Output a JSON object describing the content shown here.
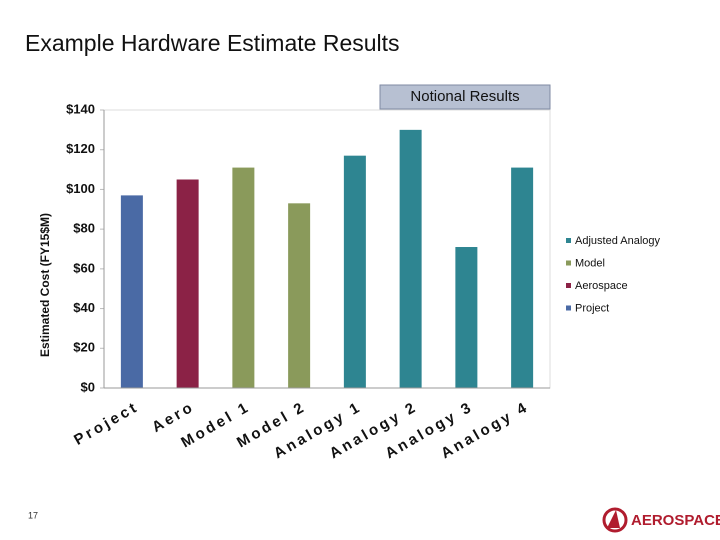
{
  "title": "Example Hardware Estimate Results",
  "badge": "Notional Results",
  "page_number": "17",
  "logo_text": "AEROSPACE",
  "chart_data": {
    "type": "bar",
    "ylabel": "Estimated Cost (FY15$M)",
    "categories": [
      "Project",
      "Aero",
      "Model 1",
      "Model 2",
      "Analogy 1",
      "Analogy 2",
      "Analogy 3",
      "Analogy 4"
    ],
    "series": [
      {
        "name": "Adjusted Analogy",
        "color": "#2e8591",
        "values": [
          null,
          null,
          null,
          null,
          117,
          130,
          71,
          111
        ]
      },
      {
        "name": "Model",
        "color": "#8a9a5b",
        "values": [
          null,
          null,
          111,
          93,
          null,
          null,
          null,
          null
        ]
      },
      {
        "name": "Aerospace",
        "color": "#8b2246",
        "values": [
          null,
          105,
          null,
          null,
          null,
          null,
          null,
          null
        ]
      },
      {
        "name": "Project",
        "color": "#4a6aa5",
        "values": [
          97,
          null,
          null,
          null,
          null,
          null,
          null,
          null
        ]
      }
    ],
    "ylim": [
      0,
      140
    ],
    "yticks": [
      {
        "value": 0,
        "label": "$0"
      },
      {
        "value": 20,
        "label": "$20"
      },
      {
        "value": 40,
        "label": "$40"
      },
      {
        "value": 60,
        "label": "$60"
      },
      {
        "value": 80,
        "label": "$80"
      },
      {
        "value": 100,
        "label": "$100"
      },
      {
        "value": 120,
        "label": "$120"
      },
      {
        "value": 140,
        "label": "$140"
      }
    ],
    "grid": false,
    "legend": "right"
  }
}
